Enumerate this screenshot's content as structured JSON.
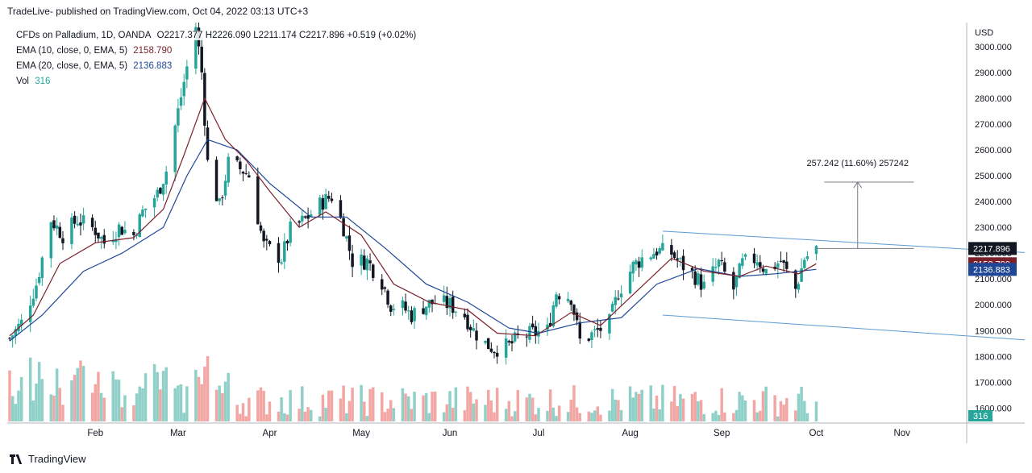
{
  "header": {
    "published_line": "TradeLive- published on TradingView.com, Oct 04, 2022 03:13 UTC+3"
  },
  "legend": {
    "symbol": "CFDs on Palladium, 1D, OANDA",
    "ohlc": {
      "o_label": "O",
      "o": "2217.377",
      "h_label": "H",
      "h": "2226.090",
      "l_label": "L",
      "l": "2211.174",
      "c_label": "C",
      "c": "2217.896",
      "chg": "+0.519 (+0.02%)"
    },
    "ema10_label": "EMA (10, close, 0, EMA, 5)",
    "ema10_value": "2158.790",
    "ema20_label": "EMA (20, close, 0, EMA, 5)",
    "ema20_value": "2136.883",
    "vol_label": "Vol",
    "vol_value": "316"
  },
  "footer": {
    "brand": "TradingView"
  },
  "colors": {
    "up": "#26a69a",
    "down": "#131722",
    "vol_up": "#8fd0c8",
    "vol_down": "#f2a7a4",
    "ema10": "#7b1f2a",
    "ema20": "#1e4696",
    "trendline": "#5b9bd5",
    "last_price_bg": "#131722",
    "ema10_bg": "#7b1f2a",
    "ema20_bg": "#1e4696"
  },
  "chart_data": {
    "type": "candlestick",
    "currency_label": "USD",
    "y_ticks": [
      "1600.000",
      "1700.000",
      "1800.000",
      "1900.000",
      "2000.000",
      "2100.000",
      "2200.000",
      "2300.000",
      "2400.000",
      "2500.000",
      "2600.000",
      "2700.000",
      "2800.000",
      "2900.000",
      "3000.000"
    ],
    "y_tick_values": [
      1600,
      1700,
      1800,
      1900,
      2000,
      2100,
      2200,
      2300,
      2400,
      2500,
      2600,
      2700,
      2800,
      2900,
      3000
    ],
    "ylim": [
      1542,
      3093
    ],
    "x_labels": [
      {
        "label": "Feb",
        "date": "2022-02-01"
      },
      {
        "label": "Mar",
        "date": "2022-03-01"
      },
      {
        "label": "Apr",
        "date": "2022-04-01"
      },
      {
        "label": "May",
        "date": "2022-05-02"
      },
      {
        "label": "Jun",
        "date": "2022-06-01"
      },
      {
        "label": "Jul",
        "date": "2022-07-01"
      },
      {
        "label": "Aug",
        "date": "2022-08-01"
      },
      {
        "label": "Sep",
        "date": "2022-09-01"
      },
      {
        "label": "Oct",
        "date": "2022-10-03"
      },
      {
        "label": "Nov",
        "date": "2022-11-01"
      }
    ],
    "price_labels": {
      "last": "2217.896",
      "ema10": "2158.790",
      "ema20": "2136.883",
      "volume": "316"
    },
    "measure_annotation": "257.242 (11.60%) 257242",
    "close_path": [
      [
        "2022-01-03",
        1870
      ],
      [
        "2022-01-07",
        1930
      ],
      [
        "2022-01-12",
        2080
      ],
      [
        "2022-01-17",
        2330
      ],
      [
        "2022-01-21",
        2270
      ],
      [
        "2022-01-26",
        2330
      ],
      [
        "2022-02-01",
        2290
      ],
      [
        "2022-02-04",
        2240
      ],
      [
        "2022-02-09",
        2300
      ],
      [
        "2022-02-14",
        2270
      ],
      [
        "2022-02-17",
        2360
      ],
      [
        "2022-02-22",
        2430
      ],
      [
        "2022-02-25",
        2520
      ],
      [
        "2022-03-01",
        2750
      ],
      [
        "2022-03-04",
        2920
      ],
      [
        "2022-03-07",
        3080
      ],
      [
        "2022-03-09",
        2900
      ],
      [
        "2022-03-11",
        2550
      ],
      [
        "2022-03-15",
        2380
      ],
      [
        "2022-03-18",
        2550
      ],
      [
        "2022-03-23",
        2520
      ],
      [
        "2022-03-25",
        2500
      ],
      [
        "2022-03-30",
        2230
      ],
      [
        "2022-04-05",
        2180
      ],
      [
        "2022-04-08",
        2290
      ],
      [
        "2022-04-13",
        2330
      ],
      [
        "2022-04-19",
        2400
      ],
      [
        "2022-04-22",
        2420
      ],
      [
        "2022-04-26",
        2300
      ],
      [
        "2022-04-29",
        2170
      ],
      [
        "2022-05-04",
        2170
      ],
      [
        "2022-05-09",
        2090
      ],
      [
        "2022-05-12",
        2000
      ],
      [
        "2022-05-16",
        1990
      ],
      [
        "2022-05-19",
        1960
      ],
      [
        "2022-05-24",
        2000
      ],
      [
        "2022-05-27",
        2010
      ],
      [
        "2022-06-01",
        2000
      ],
      [
        "2022-06-06",
        1960
      ],
      [
        "2022-06-09",
        1900
      ],
      [
        "2022-06-13",
        1850
      ],
      [
        "2022-06-16",
        1830
      ],
      [
        "2022-06-21",
        1840
      ],
      [
        "2022-06-24",
        1870
      ],
      [
        "2022-06-29",
        1890
      ],
      [
        "2022-07-04",
        1900
      ],
      [
        "2022-07-07",
        2050
      ],
      [
        "2022-07-12",
        2030
      ],
      [
        "2022-07-15",
        1860
      ],
      [
        "2022-07-20",
        1890
      ],
      [
        "2022-07-25",
        1930
      ],
      [
        "2022-07-28",
        2050
      ],
      [
        "2022-08-02",
        2150
      ],
      [
        "2022-08-05",
        2180
      ],
      [
        "2022-08-10",
        2210
      ],
      [
        "2022-08-15",
        2200
      ],
      [
        "2022-08-18",
        2160
      ],
      [
        "2022-08-23",
        2110
      ],
      [
        "2022-08-26",
        2070
      ],
      [
        "2022-08-31",
        2160
      ],
      [
        "2022-09-05",
        2060
      ],
      [
        "2022-09-08",
        2160
      ],
      [
        "2022-09-13",
        2180
      ],
      [
        "2022-09-16",
        2130
      ],
      [
        "2022-09-21",
        2170
      ],
      [
        "2022-09-26",
        2060
      ],
      [
        "2022-09-29",
        2180
      ],
      [
        "2022-10-03",
        2218
      ]
    ],
    "ema10_path": [
      [
        "2022-01-03",
        1880
      ],
      [
        "2022-01-11",
        1960
      ],
      [
        "2022-01-20",
        2160
      ],
      [
        "2022-02-01",
        2240
      ],
      [
        "2022-02-14",
        2260
      ],
      [
        "2022-02-24",
        2370
      ],
      [
        "2022-03-03",
        2580
      ],
      [
        "2022-03-10",
        2800
      ],
      [
        "2022-03-17",
        2640
      ],
      [
        "2022-03-24",
        2560
      ],
      [
        "2022-04-01",
        2440
      ],
      [
        "2022-04-11",
        2300
      ],
      [
        "2022-04-20",
        2360
      ],
      [
        "2022-05-02",
        2270
      ],
      [
        "2022-05-13",
        2080
      ],
      [
        "2022-05-25",
        2010
      ],
      [
        "2022-06-07",
        1980
      ],
      [
        "2022-06-17",
        1890
      ],
      [
        "2022-06-30",
        1880
      ],
      [
        "2022-07-12",
        1970
      ],
      [
        "2022-07-22",
        1920
      ],
      [
        "2022-08-03",
        2050
      ],
      [
        "2022-08-15",
        2180
      ],
      [
        "2022-08-26",
        2130
      ],
      [
        "2022-09-07",
        2110
      ],
      [
        "2022-09-16",
        2150
      ],
      [
        "2022-09-27",
        2120
      ],
      [
        "2022-10-03",
        2159
      ]
    ],
    "ema20_path": [
      [
        "2022-01-03",
        1860
      ],
      [
        "2022-01-14",
        1960
      ],
      [
        "2022-01-28",
        2130
      ],
      [
        "2022-02-10",
        2200
      ],
      [
        "2022-02-24",
        2300
      ],
      [
        "2022-03-04",
        2500
      ],
      [
        "2022-03-11",
        2640
      ],
      [
        "2022-03-21",
        2600
      ],
      [
        "2022-04-01",
        2470
      ],
      [
        "2022-04-15",
        2340
      ],
      [
        "2022-04-27",
        2340
      ],
      [
        "2022-05-10",
        2220
      ],
      [
        "2022-05-24",
        2080
      ],
      [
        "2022-06-07",
        2010
      ],
      [
        "2022-06-21",
        1910
      ],
      [
        "2022-07-01",
        1890
      ],
      [
        "2022-07-15",
        1930
      ],
      [
        "2022-07-29",
        1950
      ],
      [
        "2022-08-10",
        2080
      ],
      [
        "2022-08-24",
        2140
      ],
      [
        "2022-09-07",
        2110
      ],
      [
        "2022-09-19",
        2120
      ],
      [
        "2022-10-03",
        2137
      ]
    ],
    "channel_upper": [
      [
        "2022-08-12",
        2285
      ],
      [
        "2022-12-31",
        2190
      ]
    ],
    "channel_lower": [
      [
        "2022-08-12",
        1960
      ],
      [
        "2022-12-31",
        1850
      ]
    ],
    "measure": {
      "from_date": "2022-10-03",
      "to_date": "2022-11-05",
      "from_price": 2218,
      "to_price": 2475,
      "arrow_date": "2022-10-17"
    }
  }
}
